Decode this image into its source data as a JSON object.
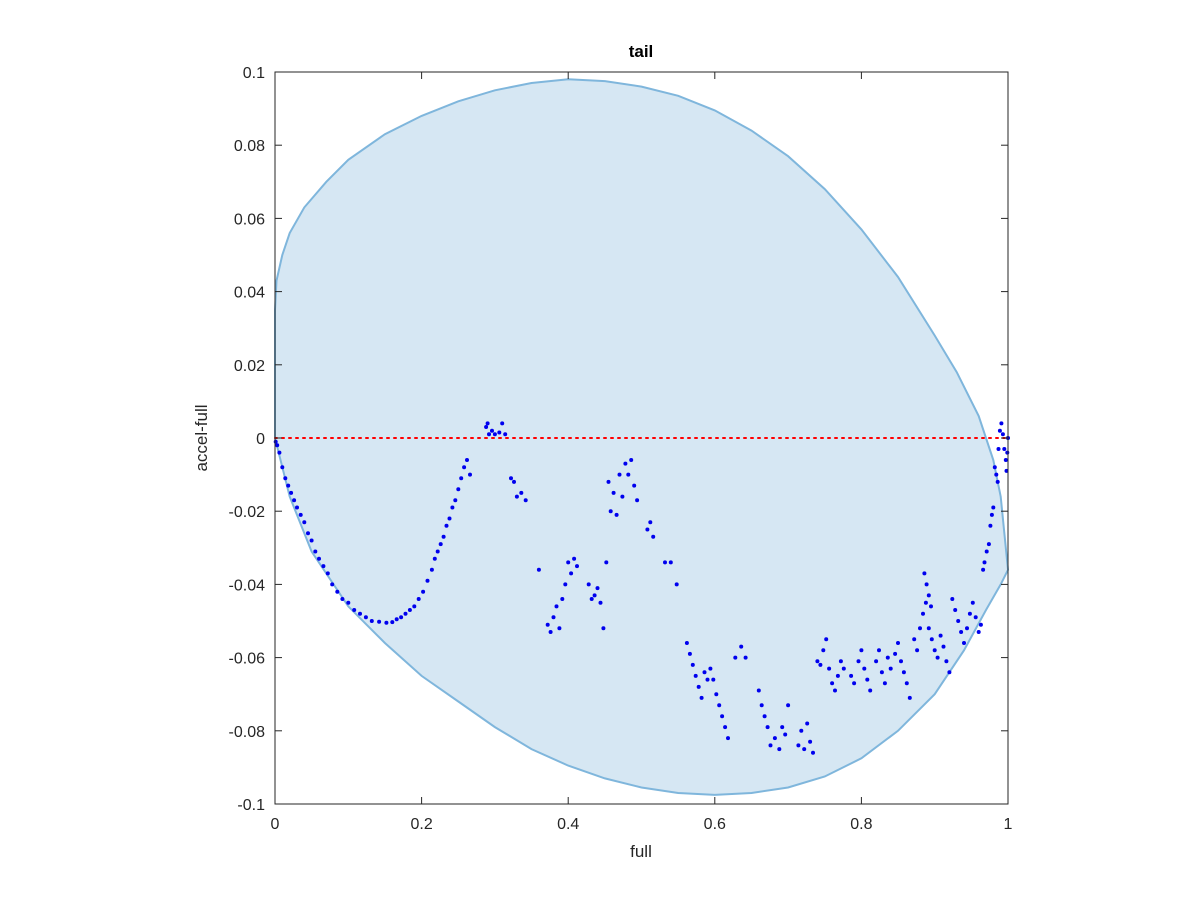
{
  "chart_data": {
    "type": "scatter",
    "title": "tail",
    "xlabel": "full",
    "ylabel": "accel-full",
    "xlim": [
      0,
      1
    ],
    "ylim": [
      -0.1,
      0.1
    ],
    "xticks": [
      0,
      0.2,
      0.4,
      0.6,
      0.8,
      1
    ],
    "xtick_labels": [
      "0",
      "0.2",
      "0.4",
      "0.6",
      "0.8",
      "1"
    ],
    "yticks": [
      -0.1,
      -0.08,
      -0.06,
      -0.04,
      -0.02,
      0,
      0.02,
      0.04,
      0.06,
      0.08,
      0.1
    ],
    "ytick_labels": [
      "-0.1",
      "-0.08",
      "-0.06",
      "-0.04",
      "-0.02",
      "0",
      "0.02",
      "0.04",
      "0.06",
      "0.08",
      "0.1"
    ],
    "grid": false,
    "colors": {
      "region_fill": "#d6e7f3",
      "region_edge": "#7fb6dc",
      "points": "#0000ee",
      "reference_line": "#ff0000",
      "axes": "#262626"
    },
    "reference_line": {
      "y": 0,
      "style": "dotted"
    },
    "region": {
      "name": "",
      "upper_boundary": {
        "x": [
          0,
          0.002,
          0.01,
          0.02,
          0.04,
          0.07,
          0.1,
          0.15,
          0.2,
          0.25,
          0.3,
          0.35,
          0.4,
          0.45,
          0.5,
          0.55,
          0.6,
          0.65,
          0.7,
          0.75,
          0.8,
          0.85,
          0.9,
          0.93,
          0.96,
          0.98,
          0.99,
          1
        ],
        "y": [
          0.035,
          0.043,
          0.05,
          0.056,
          0.063,
          0.07,
          0.076,
          0.083,
          0.088,
          0.092,
          0.095,
          0.097,
          0.098,
          0.0975,
          0.096,
          0.0935,
          0.0895,
          0.084,
          0.077,
          0.068,
          0.057,
          0.044,
          0.028,
          0.018,
          0.006,
          -0.006,
          -0.016,
          -0.036
        ]
      },
      "lower_boundary": {
        "x": [
          0,
          0.02,
          0.05,
          0.1,
          0.15,
          0.2,
          0.25,
          0.3,
          0.35,
          0.4,
          0.45,
          0.5,
          0.55,
          0.6,
          0.65,
          0.7,
          0.75,
          0.8,
          0.85,
          0.9,
          0.94,
          0.97,
          0.99,
          1
        ],
        "y": [
          0,
          -0.016,
          -0.031,
          -0.046,
          -0.056,
          -0.065,
          -0.072,
          -0.079,
          -0.085,
          -0.0895,
          -0.093,
          -0.0955,
          -0.097,
          -0.0975,
          -0.097,
          -0.0955,
          -0.0925,
          -0.0875,
          -0.08,
          -0.07,
          -0.058,
          -0.047,
          -0.04,
          -0.036
        ]
      }
    },
    "series": [
      {
        "points": [
          [
            0.001,
            -0.001
          ],
          [
            0.003,
            -0.002
          ],
          [
            0.006,
            -0.004
          ],
          [
            0.01,
            -0.008
          ],
          [
            0.014,
            -0.011
          ],
          [
            0.018,
            -0.013
          ],
          [
            0.022,
            -0.015
          ],
          [
            0.026,
            -0.017
          ],
          [
            0.03,
            -0.019
          ],
          [
            0.035,
            -0.021
          ],
          [
            0.04,
            -0.023
          ],
          [
            0.045,
            -0.026
          ],
          [
            0.05,
            -0.028
          ],
          [
            0.055,
            -0.031
          ],
          [
            0.06,
            -0.033
          ],
          [
            0.066,
            -0.035
          ],
          [
            0.072,
            -0.037
          ],
          [
            0.078,
            -0.04
          ],
          [
            0.085,
            -0.042
          ],
          [
            0.092,
            -0.044
          ],
          [
            0.1,
            -0.045
          ],
          [
            0.108,
            -0.047
          ],
          [
            0.116,
            -0.048
          ],
          [
            0.124,
            -0.049
          ],
          [
            0.132,
            -0.05
          ],
          [
            0.142,
            -0.0502
          ],
          [
            0.152,
            -0.0505
          ],
          [
            0.16,
            -0.0503
          ],
          [
            0.166,
            -0.0495
          ],
          [
            0.172,
            -0.049
          ],
          [
            0.178,
            -0.048
          ],
          [
            0.184,
            -0.047
          ],
          [
            0.19,
            -0.046
          ],
          [
            0.196,
            -0.044
          ],
          [
            0.202,
            -0.042
          ],
          [
            0.208,
            -0.039
          ],
          [
            0.214,
            -0.036
          ],
          [
            0.218,
            -0.033
          ],
          [
            0.222,
            -0.031
          ],
          [
            0.226,
            -0.029
          ],
          [
            0.23,
            -0.027
          ],
          [
            0.234,
            -0.024
          ],
          [
            0.238,
            -0.022
          ],
          [
            0.242,
            -0.019
          ],
          [
            0.246,
            -0.017
          ],
          [
            0.25,
            -0.014
          ],
          [
            0.254,
            -0.011
          ],
          [
            0.258,
            -0.008
          ],
          [
            0.262,
            -0.006
          ],
          [
            0.266,
            -0.01
          ],
          [
            0.288,
            0.003
          ],
          [
            0.29,
            0.004
          ],
          [
            0.292,
            0.001
          ],
          [
            0.296,
            0.002
          ],
          [
            0.3,
            0.001
          ],
          [
            0.306,
            0.0015
          ],
          [
            0.31,
            0.004
          ],
          [
            0.314,
            0.001
          ],
          [
            0.322,
            -0.011
          ],
          [
            0.326,
            -0.012
          ],
          [
            0.33,
            -0.016
          ],
          [
            0.336,
            -0.015
          ],
          [
            0.342,
            -0.017
          ],
          [
            0.36,
            -0.036
          ],
          [
            0.372,
            -0.051
          ],
          [
            0.376,
            -0.053
          ],
          [
            0.38,
            -0.049
          ],
          [
            0.384,
            -0.046
          ],
          [
            0.388,
            -0.052
          ],
          [
            0.392,
            -0.044
          ],
          [
            0.396,
            -0.04
          ],
          [
            0.4,
            -0.034
          ],
          [
            0.404,
            -0.037
          ],
          [
            0.408,
            -0.033
          ],
          [
            0.412,
            -0.035
          ],
          [
            0.428,
            -0.04
          ],
          [
            0.432,
            -0.044
          ],
          [
            0.436,
            -0.043
          ],
          [
            0.44,
            -0.041
          ],
          [
            0.444,
            -0.045
          ],
          [
            0.448,
            -0.052
          ],
          [
            0.452,
            -0.034
          ],
          [
            0.455,
            -0.012
          ],
          [
            0.458,
            -0.02
          ],
          [
            0.462,
            -0.015
          ],
          [
            0.466,
            -0.021
          ],
          [
            0.47,
            -0.01
          ],
          [
            0.474,
            -0.016
          ],
          [
            0.478,
            -0.007
          ],
          [
            0.482,
            -0.01
          ],
          [
            0.486,
            -0.006
          ],
          [
            0.49,
            -0.013
          ],
          [
            0.494,
            -0.017
          ],
          [
            0.508,
            -0.025
          ],
          [
            0.512,
            -0.023
          ],
          [
            0.516,
            -0.027
          ],
          [
            0.532,
            -0.034
          ],
          [
            0.54,
            -0.034
          ],
          [
            0.548,
            -0.04
          ],
          [
            0.562,
            -0.056
          ],
          [
            0.566,
            -0.059
          ],
          [
            0.57,
            -0.062
          ],
          [
            0.574,
            -0.065
          ],
          [
            0.578,
            -0.068
          ],
          [
            0.582,
            -0.071
          ],
          [
            0.586,
            -0.064
          ],
          [
            0.59,
            -0.066
          ],
          [
            0.594,
            -0.063
          ],
          [
            0.598,
            -0.066
          ],
          [
            0.602,
            -0.07
          ],
          [
            0.606,
            -0.073
          ],
          [
            0.61,
            -0.076
          ],
          [
            0.614,
            -0.079
          ],
          [
            0.618,
            -0.082
          ],
          [
            0.628,
            -0.06
          ],
          [
            0.636,
            -0.057
          ],
          [
            0.642,
            -0.06
          ],
          [
            0.66,
            -0.069
          ],
          [
            0.664,
            -0.073
          ],
          [
            0.668,
            -0.076
          ],
          [
            0.672,
            -0.079
          ],
          [
            0.676,
            -0.084
          ],
          [
            0.682,
            -0.082
          ],
          [
            0.688,
            -0.085
          ],
          [
            0.692,
            -0.079
          ],
          [
            0.696,
            -0.081
          ],
          [
            0.7,
            -0.073
          ],
          [
            0.714,
            -0.084
          ],
          [
            0.718,
            -0.08
          ],
          [
            0.722,
            -0.085
          ],
          [
            0.726,
            -0.078
          ],
          [
            0.73,
            -0.083
          ],
          [
            0.734,
            -0.086
          ],
          [
            0.74,
            -0.061
          ],
          [
            0.744,
            -0.062
          ],
          [
            0.748,
            -0.058
          ],
          [
            0.752,
            -0.055
          ],
          [
            0.756,
            -0.063
          ],
          [
            0.76,
            -0.067
          ],
          [
            0.764,
            -0.069
          ],
          [
            0.768,
            -0.065
          ],
          [
            0.772,
            -0.061
          ],
          [
            0.776,
            -0.063
          ],
          [
            0.786,
            -0.065
          ],
          [
            0.79,
            -0.067
          ],
          [
            0.796,
            -0.061
          ],
          [
            0.8,
            -0.058
          ],
          [
            0.804,
            -0.063
          ],
          [
            0.808,
            -0.066
          ],
          [
            0.812,
            -0.069
          ],
          [
            0.82,
            -0.061
          ],
          [
            0.824,
            -0.058
          ],
          [
            0.828,
            -0.064
          ],
          [
            0.832,
            -0.067
          ],
          [
            0.836,
            -0.06
          ],
          [
            0.84,
            -0.063
          ],
          [
            0.846,
            -0.059
          ],
          [
            0.85,
            -0.056
          ],
          [
            0.854,
            -0.061
          ],
          [
            0.858,
            -0.064
          ],
          [
            0.862,
            -0.067
          ],
          [
            0.866,
            -0.071
          ],
          [
            0.872,
            -0.055
          ],
          [
            0.876,
            -0.058
          ],
          [
            0.88,
            -0.052
          ],
          [
            0.884,
            -0.048
          ],
          [
            0.888,
            -0.045
          ],
          [
            0.892,
            -0.052
          ],
          [
            0.896,
            -0.055
          ],
          [
            0.9,
            -0.058
          ],
          [
            0.904,
            -0.06
          ],
          [
            0.908,
            -0.054
          ],
          [
            0.912,
            -0.057
          ],
          [
            0.916,
            -0.061
          ],
          [
            0.92,
            -0.064
          ],
          [
            0.886,
            -0.037
          ],
          [
            0.889,
            -0.04
          ],
          [
            0.892,
            -0.043
          ],
          [
            0.895,
            -0.046
          ],
          [
            0.924,
            -0.044
          ],
          [
            0.928,
            -0.047
          ],
          [
            0.932,
            -0.05
          ],
          [
            0.936,
            -0.053
          ],
          [
            0.94,
            -0.056
          ],
          [
            0.944,
            -0.052
          ],
          [
            0.948,
            -0.048
          ],
          [
            0.952,
            -0.045
          ],
          [
            0.956,
            -0.049
          ],
          [
            0.96,
            -0.053
          ],
          [
            0.963,
            -0.051
          ],
          [
            0.966,
            -0.036
          ],
          [
            0.968,
            -0.034
          ],
          [
            0.971,
            -0.031
          ],
          [
            0.974,
            -0.029
          ],
          [
            0.976,
            -0.024
          ],
          [
            0.978,
            -0.021
          ],
          [
            0.98,
            -0.019
          ],
          [
            0.982,
            -0.008
          ],
          [
            0.984,
            -0.01
          ],
          [
            0.986,
            -0.012
          ],
          [
            0.987,
            -0.003
          ],
          [
            0.989,
            0.002
          ],
          [
            0.991,
            0.004
          ],
          [
            0.993,
            0.001
          ],
          [
            0.995,
            -0.003
          ],
          [
            0.997,
            -0.006
          ],
          [
            0.998,
            -0.009
          ],
          [
            0.999,
            -0.004
          ],
          [
            1.0,
            0.0
          ]
        ]
      }
    ]
  }
}
